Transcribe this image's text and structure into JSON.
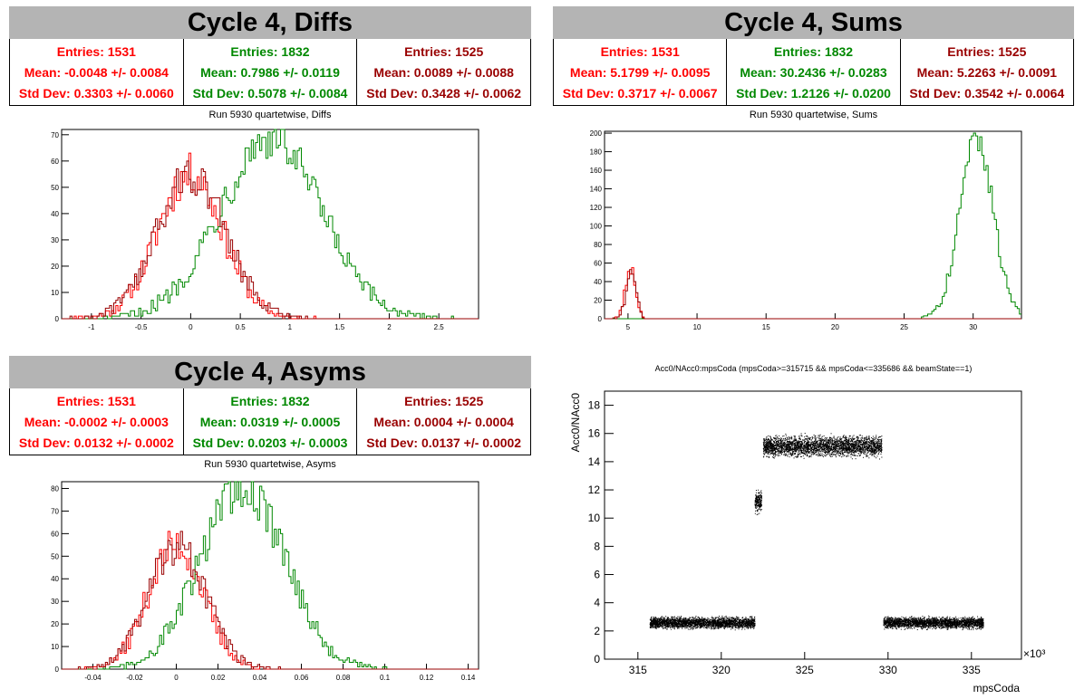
{
  "panels": [
    {
      "title": "Cycle 4, Diffs",
      "stats": [
        {
          "entries": "Entries: 1531",
          "mean": "Mean: -0.0048 +/- 0.0084",
          "std": "Std Dev: 0.3303 +/- 0.0060",
          "color": "#ff0000"
        },
        {
          "entries": "Entries: 1832",
          "mean": "Mean: 0.7986 +/- 0.0119",
          "std": "Std Dev: 0.5078 +/- 0.0084",
          "color": "#008800"
        },
        {
          "entries": "Entries: 1525",
          "mean": "Mean: 0.0089 +/- 0.0088",
          "std": "Std Dev: 0.3428 +/- 0.0062",
          "color": "#990000"
        }
      ],
      "plot_title": "Run 5930 quartetwise, Diffs"
    },
    {
      "title": "Cycle 4, Sums",
      "stats": [
        {
          "entries": "Entries: 1531",
          "mean": "Mean: 5.1799 +/- 0.0095",
          "std": "Std Dev: 0.3717 +/- 0.0067",
          "color": "#ff0000"
        },
        {
          "entries": "Entries: 1832",
          "mean": "Mean: 30.2436 +/- 0.0283",
          "std": "Std Dev: 1.2126 +/- 0.0200",
          "color": "#008800"
        },
        {
          "entries": "Entries: 1525",
          "mean": "Mean: 5.2263 +/- 0.0091",
          "std": "Std Dev: 0.3542 +/- 0.0064",
          "color": "#990000"
        }
      ],
      "plot_title": "Run 5930 quartetwise, Sums"
    },
    {
      "title": "Cycle 4, Asyms",
      "stats": [
        {
          "entries": "Entries: 1531",
          "mean": "Mean: -0.0002 +/- 0.0003",
          "std": "Std Dev: 0.0132 +/- 0.0002",
          "color": "#ff0000"
        },
        {
          "entries": "Entries: 1832",
          "mean": "Mean: 0.0319 +/- 0.0005",
          "std": "Std Dev: 0.0203 +/- 0.0003",
          "color": "#008800"
        },
        {
          "entries": "Entries: 1525",
          "mean": "Mean: 0.0004 +/- 0.0004",
          "std": "Std Dev: 0.0137 +/- 0.0002",
          "color": "#990000"
        }
      ],
      "plot_title": "Run 5930 quartetwise, Asyms"
    }
  ],
  "scatter_panel": {
    "plot_title": "Acc0/NAcc0:mpsCoda (mpsCoda>=315715 && mpsCoda<=335686 && beamState==1)"
  },
  "chart_data": [
    {
      "type": "histogram",
      "title": "Run 5930 quartetwise, Diffs",
      "xlim": [
        -1.3,
        2.9
      ],
      "ylim": [
        0,
        72
      ],
      "xticks": [
        -1,
        -0.5,
        0,
        0.5,
        1,
        1.5,
        2,
        2.5
      ],
      "yticks": [
        0,
        10,
        20,
        30,
        40,
        50,
        60,
        70
      ],
      "grid": false,
      "series": [
        {
          "color": "#ff0000",
          "mean": -0.0048,
          "std": 0.3303,
          "entries": 1531,
          "peak": 55
        },
        {
          "color": "#008800",
          "mean": 0.7986,
          "std": 0.5078,
          "entries": 1832,
          "peak": 69
        },
        {
          "color": "#990000",
          "mean": 0.0089,
          "std": 0.3428,
          "entries": 1525,
          "peak": 55
        }
      ]
    },
    {
      "type": "histogram",
      "title": "Run 5930 quartetwise, Sums",
      "xlim": [
        3.3,
        33.5
      ],
      "ylim": [
        0,
        202
      ],
      "xticks": [
        5,
        10,
        15,
        20,
        25,
        30
      ],
      "yticks": [
        0,
        20,
        40,
        60,
        80,
        100,
        120,
        140,
        160,
        180,
        200
      ],
      "grid": false,
      "series": [
        {
          "color": "#ff0000",
          "mean": 5.1799,
          "std": 0.3717,
          "entries": 1531,
          "peak": 55
        },
        {
          "color": "#008800",
          "mean": 30.2436,
          "std": 1.2126,
          "entries": 1832,
          "peak": 192
        },
        {
          "color": "#990000",
          "mean": 5.2263,
          "std": 0.3542,
          "entries": 1525,
          "peak": 52
        }
      ]
    },
    {
      "type": "histogram",
      "title": "Run 5930 quartetwise, Asyms",
      "xlim": [
        -0.055,
        0.145
      ],
      "ylim": [
        0,
        83
      ],
      "xticks": [
        -0.04,
        -0.02,
        0,
        0.02,
        0.04,
        0.06,
        0.08,
        0.1,
        0.12,
        0.14
      ],
      "yticks": [
        0,
        10,
        20,
        30,
        40,
        50,
        60,
        70,
        80
      ],
      "grid": false,
      "series": [
        {
          "color": "#ff0000",
          "mean": -0.0002,
          "std": 0.0132,
          "entries": 1531,
          "peak": 55
        },
        {
          "color": "#008800",
          "mean": 0.0319,
          "std": 0.0203,
          "entries": 1832,
          "peak": 80
        },
        {
          "color": "#990000",
          "mean": 0.0004,
          "std": 0.0137,
          "entries": 1525,
          "peak": 55
        }
      ]
    },
    {
      "type": "scatter",
      "title": "Acc0/NAcc0:mpsCoda (mpsCoda>=315715 && mpsCoda<=335686 && beamState==1)",
      "xlabel": "mpsCoda",
      "ylabel": "Acc0/NAcc0",
      "xexponent": "×10³",
      "xlim": [
        313,
        338
      ],
      "ylim": [
        0,
        19
      ],
      "xticks": [
        315,
        320,
        325,
        330,
        335
      ],
      "yticks": [
        0,
        2,
        4,
        6,
        8,
        10,
        12,
        14,
        16,
        18
      ],
      "grid": false,
      "clusters": [
        {
          "x": [
            315.7,
            322.0
          ],
          "y": 2.6,
          "spread": 0.3
        },
        {
          "x": [
            322.0,
            322.4
          ],
          "y": 11.2,
          "spread": 0.6
        },
        {
          "x": [
            322.5,
            329.6
          ],
          "y": 15.1,
          "spread": 0.55
        },
        {
          "x": [
            329.7,
            335.7
          ],
          "y": 2.6,
          "spread": 0.3
        }
      ]
    }
  ]
}
